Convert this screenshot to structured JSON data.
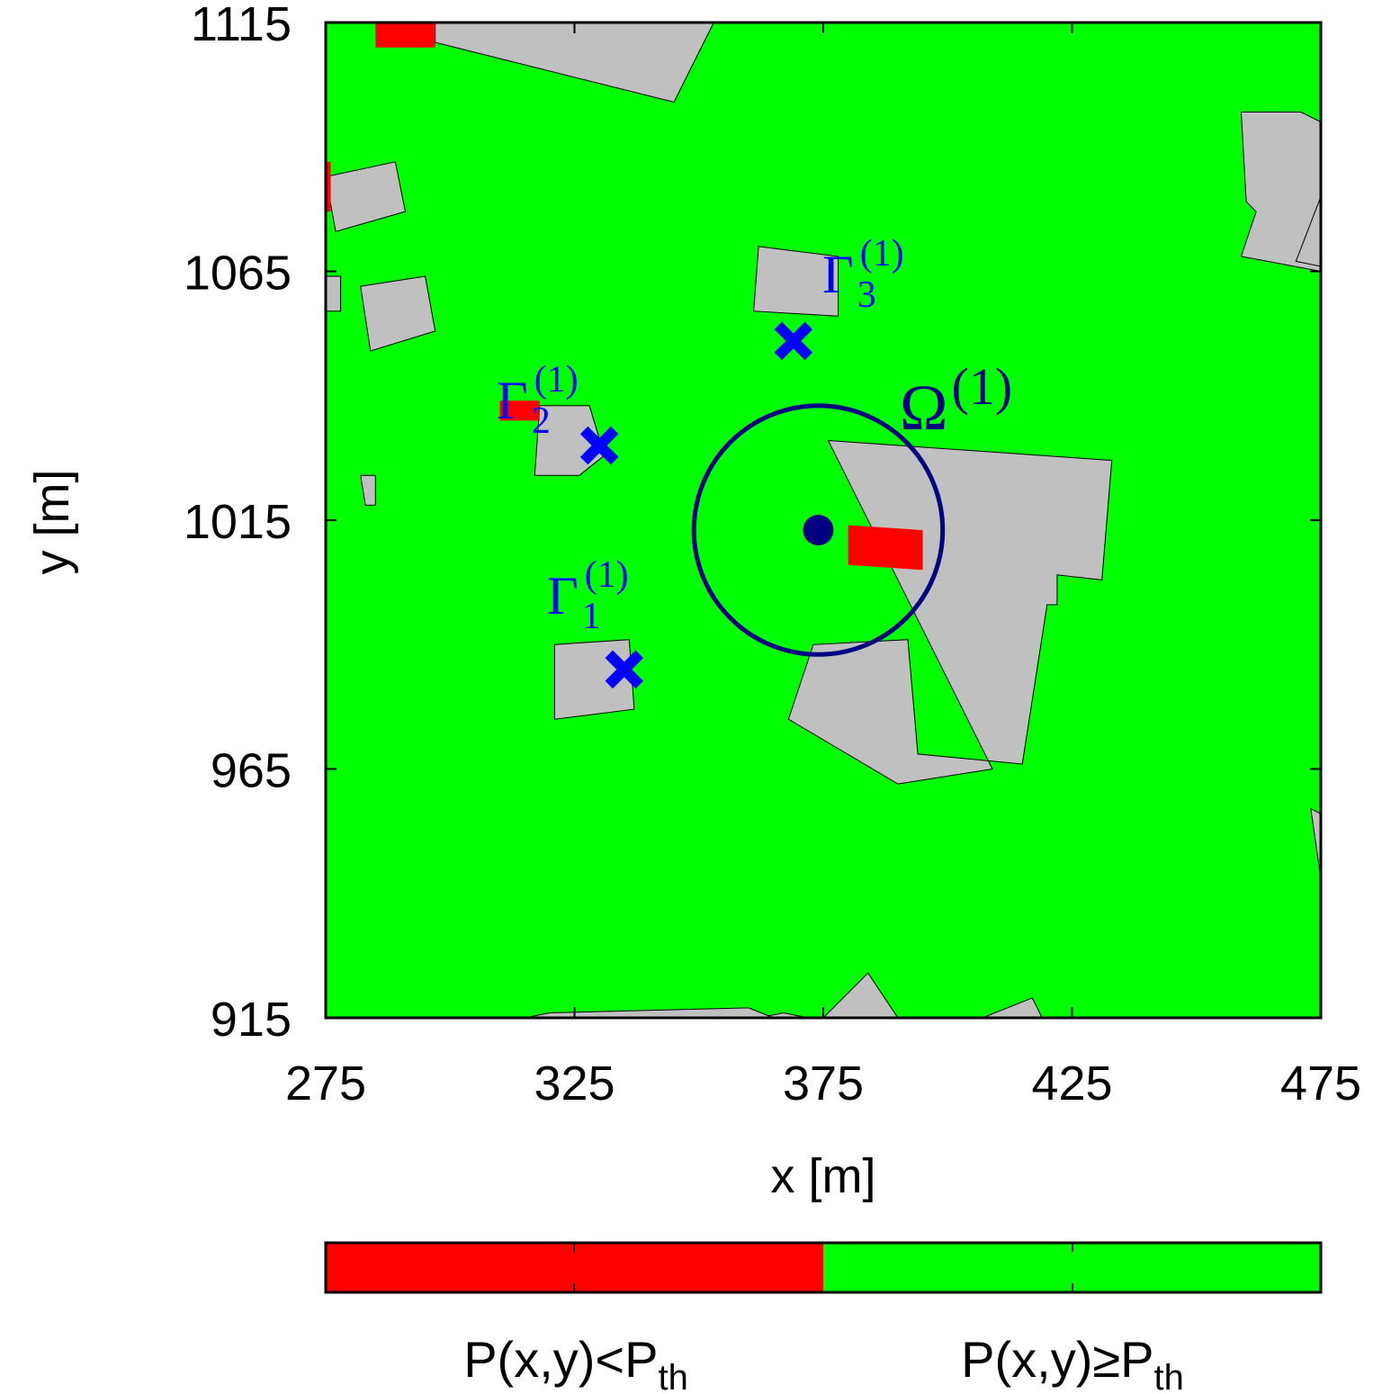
{
  "chart_data": {
    "type": "heatmap",
    "xlabel": "x [m]",
    "ylabel": "y [m]",
    "xlim": [
      275,
      475
    ],
    "ylim": [
      915,
      1115
    ],
    "xticks": [
      "275",
      "325",
      "375",
      "425",
      "475"
    ],
    "yticks": [
      "915",
      "965",
      "1015",
      "1065",
      "1115"
    ],
    "grid": false,
    "colors": {
      "below": "#ff0000",
      "above": "#00ff00",
      "building": "#c0c0c0",
      "omega": "#000080",
      "gamma": "#0000ff"
    },
    "buildings": [
      [
        [
          297,
          1115
        ],
        [
          353,
          1115
        ],
        [
          345,
          1099
        ],
        [
          297,
          1111
        ]
      ],
      [
        [
          275,
          1084
        ],
        [
          289,
          1087
        ],
        [
          291,
          1077
        ],
        [
          277,
          1073
        ]
      ],
      [
        [
          275,
          1064
        ],
        [
          278,
          1064
        ],
        [
          278,
          1057
        ],
        [
          275,
          1057
        ]
      ],
      [
        [
          282,
          1062
        ],
        [
          295,
          1064
        ],
        [
          297,
          1053
        ],
        [
          284,
          1049
        ]
      ],
      [
        [
          318,
          1038
        ],
        [
          328,
          1038
        ],
        [
          331,
          1028
        ],
        [
          326,
          1024
        ],
        [
          317,
          1024
        ]
      ],
      [
        [
          282,
          1024
        ],
        [
          285,
          1024
        ],
        [
          285,
          1018
        ],
        [
          283,
          1018
        ]
      ],
      [
        [
          321,
          990
        ],
        [
          336,
          991
        ],
        [
          337,
          977
        ],
        [
          321,
          975
        ]
      ],
      [
        [
          362,
          1070
        ],
        [
          378,
          1068
        ],
        [
          378,
          1056
        ],
        [
          361,
          1057
        ]
      ],
      [
        [
          459,
          1097
        ],
        [
          460,
          1079
        ],
        [
          462,
          1077
        ],
        [
          459,
          1068
        ],
        [
          475,
          1065
        ],
        [
          475,
          1095
        ],
        [
          471,
          1097
        ]
      ],
      [
        [
          475,
          1080
        ],
        [
          475,
          1066
        ],
        [
          470,
          1067
        ]
      ],
      [
        [
          376,
          1031
        ],
        [
          433,
          1027
        ],
        [
          431,
          1003
        ],
        [
          422,
          1004
        ],
        [
          422,
          998
        ],
        [
          420,
          998
        ],
        [
          415,
          966
        ],
        [
          394,
          968
        ],
        [
          392,
          991
        ],
        [
          373,
          990
        ],
        [
          368,
          975
        ],
        [
          390,
          962
        ],
        [
          409,
          965
        ]
      ],
      [
        [
          475,
          956
        ],
        [
          473,
          957
        ],
        [
          475,
          943
        ]
      ],
      [
        [
          362,
          915
        ],
        [
          372,
          915
        ],
        [
          367,
          916
        ]
      ],
      [
        [
          375,
          915
        ],
        [
          390,
          915
        ],
        [
          384,
          924
        ]
      ],
      [
        [
          315,
          915
        ],
        [
          365,
          915
        ],
        [
          360,
          917
        ],
        [
          320,
          916
        ]
      ],
      [
        [
          407,
          915
        ],
        [
          419,
          915
        ],
        [
          417,
          919
        ]
      ]
    ],
    "red_regions": [
      [
        [
          285,
          1115
        ],
        [
          297,
          1115
        ],
        [
          297,
          1110
        ],
        [
          285,
          1110
        ]
      ],
      [
        [
          275,
          1087
        ],
        [
          276,
          1087
        ],
        [
          276,
          1077
        ],
        [
          275,
          1077
        ]
      ],
      [
        [
          310,
          1039
        ],
        [
          318,
          1039
        ],
        [
          318,
          1035
        ],
        [
          310,
          1035
        ]
      ],
      [
        [
          380,
          1014
        ],
        [
          395,
          1013
        ],
        [
          395,
          1005
        ],
        [
          380,
          1006
        ]
      ]
    ],
    "omega_center": [
      374,
      1013
    ],
    "omega_radius": 25,
    "gamma_points": [
      {
        "label_base": "Γ",
        "sub": "1",
        "sup": "(1)",
        "x": 335,
        "y": 985
      },
      {
        "label_base": "Γ",
        "sub": "2",
        "sup": "(1)",
        "x": 330,
        "y": 1030
      },
      {
        "label_base": "Γ",
        "sub": "3",
        "sup": "(1)",
        "x": 369,
        "y": 1051
      }
    ],
    "omega_label": {
      "base": "Ω",
      "sup": "(1)"
    },
    "legend": {
      "left": {
        "base": "P(x,y)<P",
        "sub": "th"
      },
      "right": {
        "base": "P(x,y)≥P",
        "sub": "th"
      }
    }
  }
}
